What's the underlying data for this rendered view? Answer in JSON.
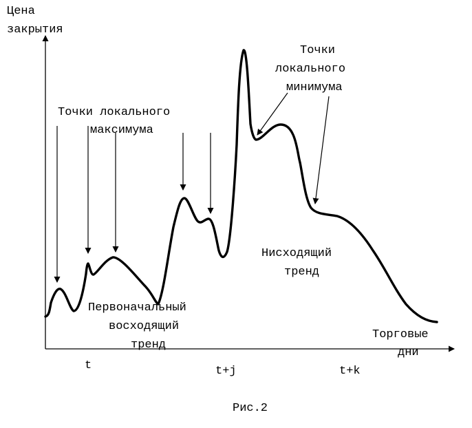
{
  "y_axis_label": {
    "line1": "Цена",
    "line2": "закрытия"
  },
  "x_axis_label": {
    "line1": "Торговые",
    "line2": "дни"
  },
  "annotations": {
    "local_max": {
      "line1": "Точки локального",
      "line2": "максимума"
    },
    "local_min": {
      "line1": "Точки",
      "line2": "локального",
      "line3": "минимума"
    },
    "uptrend": {
      "line1": "Первоначальный",
      "line2": "восходящий",
      "line3": "тренд"
    },
    "downtrend": {
      "line1": "Нисходящий",
      "line2": "тренд"
    }
  },
  "ticks": {
    "t": "t",
    "tj": "t+j",
    "tk": "t+k"
  },
  "caption": "Рис.2"
}
